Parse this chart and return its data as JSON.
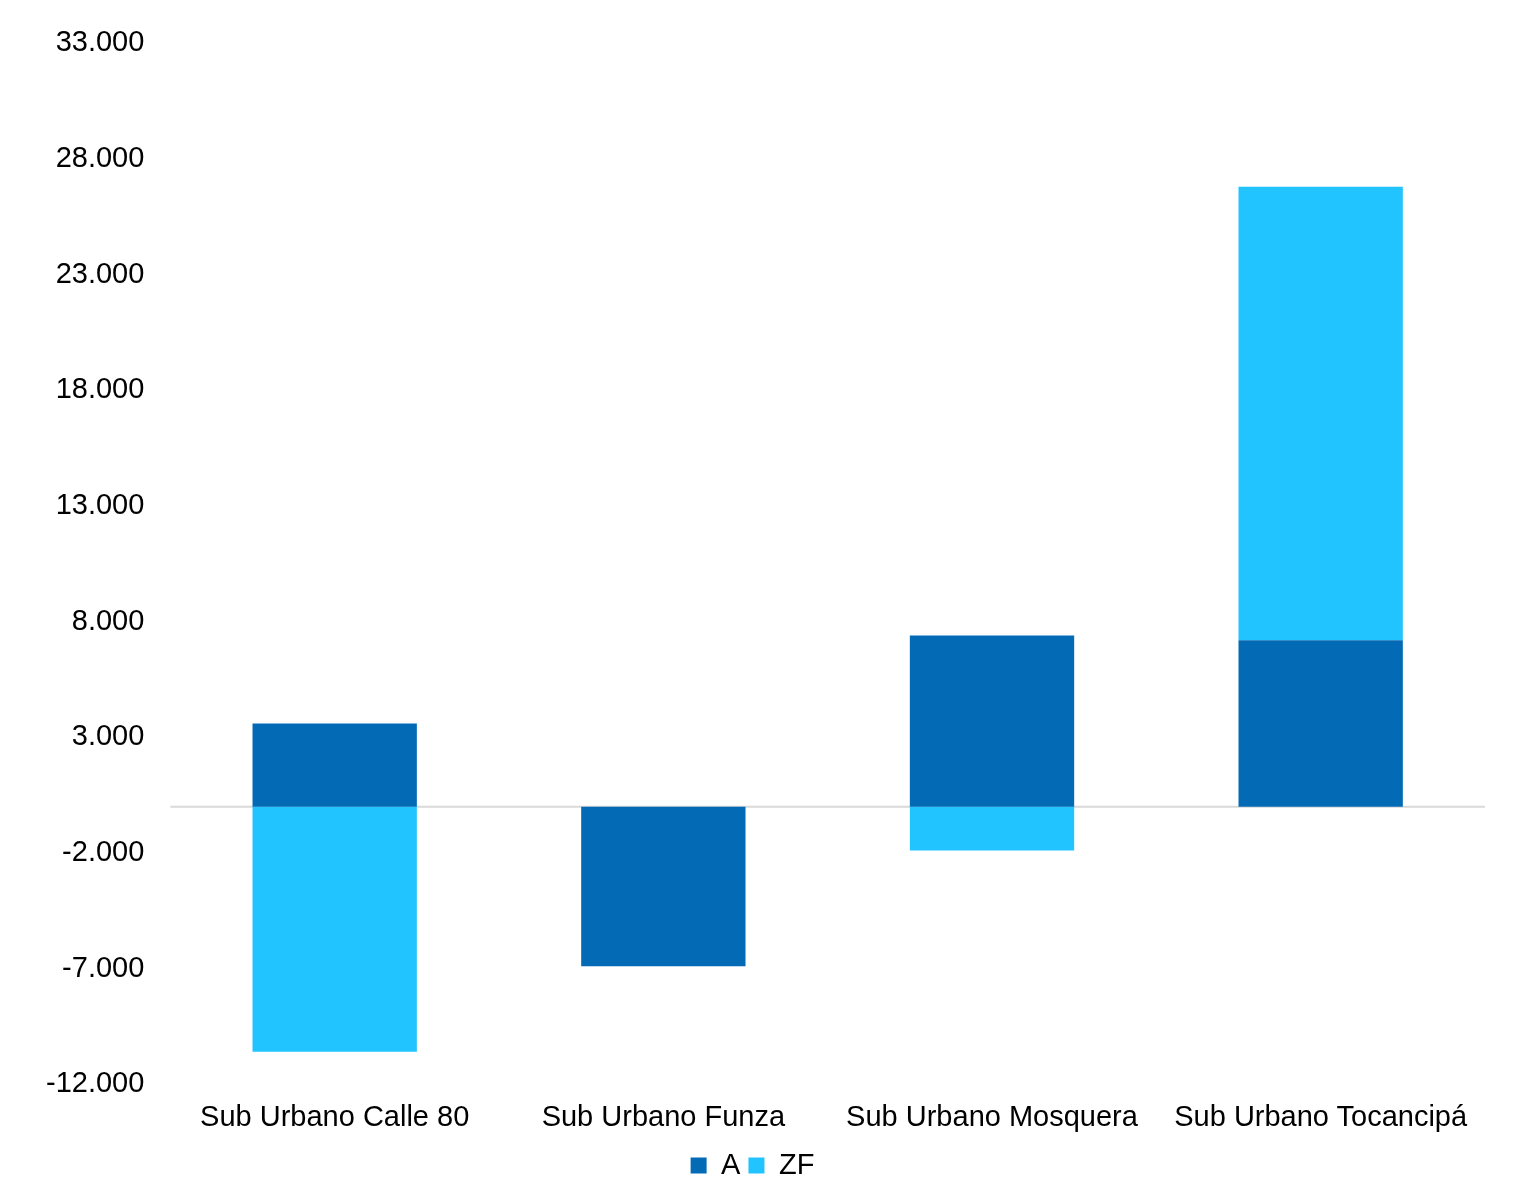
{
  "chart_data": {
    "type": "bar",
    "stacked": true,
    "categories": [
      "Sub Urbano Calle 80",
      "Sub Urbano Funza",
      "Sub Urbano Mosquera",
      "Sub Urbano Tocancipá"
    ],
    "series": [
      {
        "name": "A",
        "color": "#036ab5",
        "values": [
          3600,
          -6900,
          7400,
          7200
        ]
      },
      {
        "name": "ZF",
        "color": "#22c4ff",
        "values": [
          -10600,
          0,
          -1900,
          19600
        ]
      }
    ],
    "ylim": [
      -12000,
      33000
    ],
    "yticks": [
      {
        "value": -12000,
        "label": "-12.000"
      },
      {
        "value": -7000,
        "label": "-7.000"
      },
      {
        "value": -2000,
        "label": "-2.000"
      },
      {
        "value": 3000,
        "label": "3.000"
      },
      {
        "value": 8000,
        "label": "8.000"
      },
      {
        "value": 13000,
        "label": "13.000"
      },
      {
        "value": 18000,
        "label": "18.000"
      },
      {
        "value": 23000,
        "label": "23.000"
      },
      {
        "value": 28000,
        "label": "28.000"
      },
      {
        "value": 33000,
        "label": "33.000"
      }
    ],
    "grid": false,
    "legend": "bottom"
  }
}
